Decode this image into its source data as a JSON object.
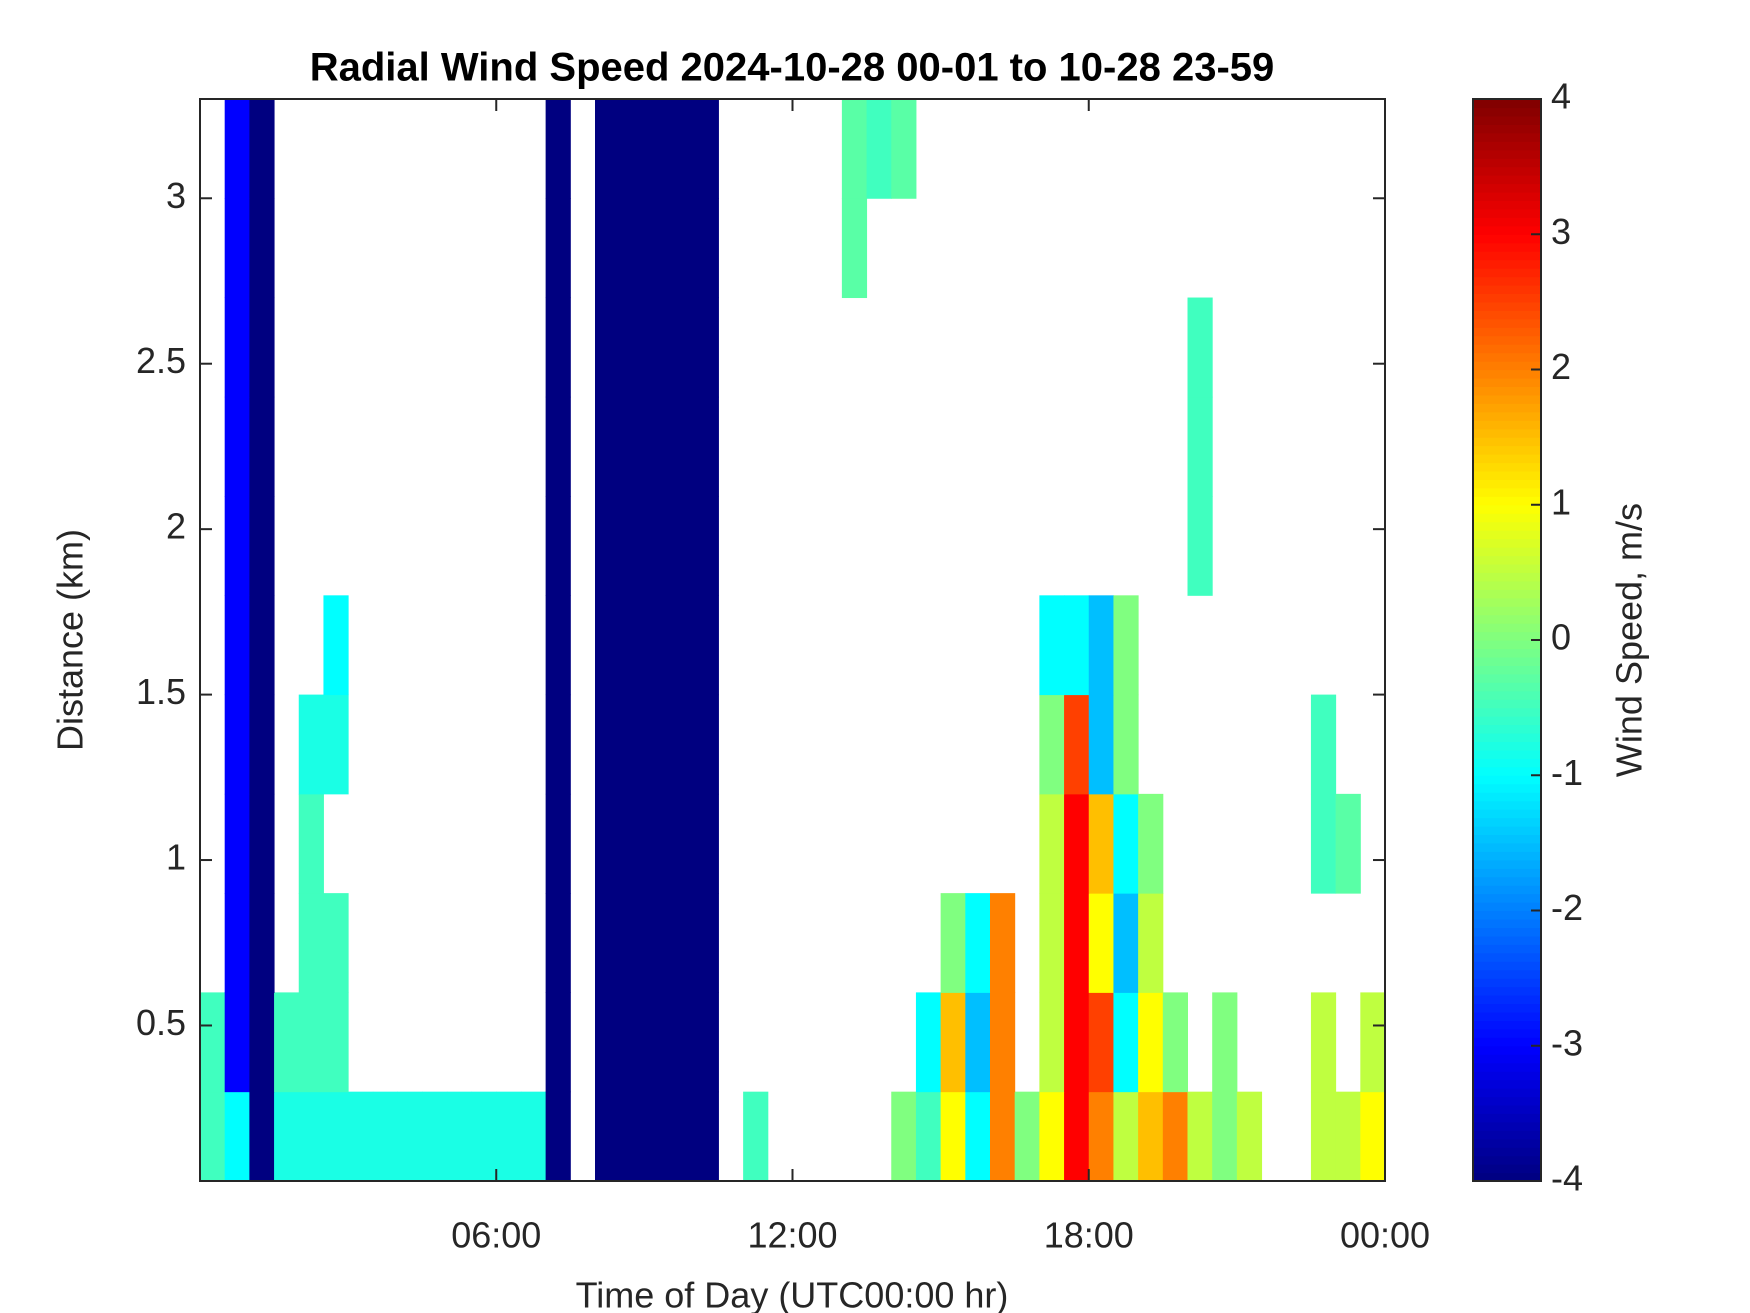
{
  "chart_data": {
    "type": "heatmap",
    "title": "Radial Wind Speed 2024-10-28 00-01 to 10-28 23-59",
    "xlabel": "Time of Day (UTC00:00 hr)",
    "ylabel": "Distance (km)",
    "colorbar_label": "Wind Speed, m/s",
    "colormap": "jet",
    "clim": [
      -4,
      4
    ],
    "cticks": [
      -4,
      -3,
      -2,
      -1,
      0,
      1,
      2,
      3,
      4
    ],
    "xlim": [
      0,
      24
    ],
    "xticks": [
      {
        "value": 6,
        "label": "06:00"
      },
      {
        "value": 12,
        "label": "12:00"
      },
      {
        "value": 18,
        "label": "18:00"
      },
      {
        "value": 24,
        "label": "00:00"
      }
    ],
    "ylim": [
      0.03,
      3.3
    ],
    "yticks": [
      0.5,
      1,
      1.5,
      2,
      2.5,
      3
    ],
    "x": [
      0.25,
      0.75,
      1.25,
      1.75,
      2.25,
      2.75,
      3.25,
      3.75,
      4.25,
      4.75,
      5.25,
      5.75,
      6.25,
      6.75,
      7.25,
      7.75,
      8.25,
      8.75,
      9.25,
      9.75,
      10.25,
      10.75,
      11.25,
      11.75,
      12.25,
      12.75,
      13.25,
      13.75,
      14.25,
      14.75,
      15.25,
      15.75,
      16.25,
      16.75,
      17.25,
      17.75,
      18.25,
      18.75,
      19.25,
      19.75,
      20.25,
      20.75,
      21.25,
      21.75,
      22.25,
      22.75,
      23.25,
      23.75
    ],
    "y": [
      0.15,
      0.45,
      0.75,
      1.05,
      1.35,
      1.65,
      1.95,
      2.25,
      2.55,
      2.85,
      3.15
    ],
    "z": [
      [
        -0.5,
        -1,
        -4,
        -0.8,
        -0.8,
        -0.8,
        -0.8,
        -0.8,
        -0.8,
        -0.8,
        -0.8,
        -0.8,
        -0.8,
        -0.8,
        -4,
        null,
        -4,
        -4,
        -4,
        -4,
        -4,
        null,
        -0.5,
        null,
        null,
        null,
        null,
        null,
        0,
        -0.5,
        1,
        -1,
        2,
        0,
        1,
        3,
        2,
        0.5,
        1.5,
        2,
        0.5,
        0,
        0.5,
        null,
        null,
        0.5,
        0.5,
        1
      ],
      [
        -0.5,
        -3,
        -4,
        -0.5,
        -0.5,
        -0.5,
        null,
        null,
        null,
        null,
        null,
        null,
        null,
        null,
        -4,
        null,
        -4,
        -4,
        -4,
        -4,
        -4,
        null,
        null,
        null,
        null,
        null,
        null,
        null,
        null,
        -1,
        1.5,
        -1.5,
        2,
        null,
        0.5,
        3,
        2.5,
        -1,
        1,
        0,
        null,
        0,
        null,
        null,
        null,
        0.5,
        null,
        0.5
      ],
      [
        null,
        -3,
        -4,
        null,
        -0.5,
        -0.5,
        null,
        null,
        null,
        null,
        null,
        null,
        null,
        null,
        -4,
        null,
        -4,
        -4,
        -4,
        -4,
        -4,
        null,
        null,
        null,
        null,
        null,
        null,
        null,
        null,
        null,
        0,
        -1,
        2,
        null,
        0.5,
        3,
        1,
        -1.5,
        0.5,
        null,
        null,
        null,
        null,
        null,
        null,
        null,
        null,
        null
      ],
      [
        null,
        -3,
        -4,
        null,
        -0.5,
        null,
        null,
        null,
        null,
        null,
        null,
        null,
        null,
        null,
        -4,
        null,
        -4,
        -4,
        -4,
        -4,
        -4,
        null,
        null,
        null,
        null,
        null,
        null,
        null,
        null,
        null,
        null,
        null,
        null,
        null,
        0.5,
        3,
        1.5,
        -1,
        0,
        null,
        null,
        null,
        null,
        null,
        null,
        -0.5,
        -0.3,
        null
      ],
      [
        null,
        -3,
        -4,
        null,
        -0.8,
        -0.8,
        null,
        null,
        null,
        null,
        null,
        null,
        null,
        null,
        -4,
        null,
        -4,
        -4,
        -4,
        -4,
        -4,
        null,
        null,
        null,
        null,
        null,
        null,
        null,
        null,
        null,
        null,
        null,
        null,
        null,
        0,
        2.5,
        -1.5,
        0,
        null,
        null,
        null,
        null,
        null,
        null,
        null,
        -0.5,
        null,
        null
      ],
      [
        null,
        -3,
        -4,
        null,
        null,
        -1,
        null,
        null,
        null,
        null,
        null,
        null,
        null,
        null,
        -4,
        null,
        -4,
        -4,
        -4,
        -4,
        -4,
        null,
        null,
        null,
        null,
        null,
        null,
        null,
        null,
        null,
        null,
        null,
        null,
        null,
        -1,
        -1,
        -1.5,
        0,
        null,
        null,
        null,
        null,
        null,
        null,
        null,
        null,
        null,
        null
      ],
      [
        null,
        -3,
        -4,
        null,
        null,
        null,
        null,
        null,
        null,
        null,
        null,
        null,
        null,
        null,
        -4,
        null,
        -4,
        -4,
        -4,
        -4,
        -4,
        null,
        null,
        null,
        null,
        null,
        null,
        null,
        null,
        null,
        null,
        null,
        null,
        null,
        null,
        null,
        null,
        null,
        null,
        null,
        -0.5,
        null,
        null,
        null,
        null,
        null,
        null,
        null
      ],
      [
        null,
        -3,
        -4,
        null,
        null,
        null,
        null,
        null,
        null,
        null,
        null,
        null,
        null,
        null,
        -4,
        null,
        -4,
        -4,
        -4,
        -4,
        -4,
        null,
        null,
        null,
        null,
        null,
        null,
        null,
        null,
        null,
        null,
        null,
        null,
        null,
        null,
        null,
        null,
        null,
        null,
        null,
        -0.5,
        null,
        null,
        null,
        null,
        null,
        null,
        null
      ],
      [
        null,
        -3,
        -4,
        null,
        null,
        null,
        null,
        null,
        null,
        null,
        null,
        null,
        null,
        null,
        -4,
        null,
        -4,
        -4,
        -4,
        -4,
        -4,
        null,
        null,
        null,
        null,
        null,
        null,
        null,
        null,
        null,
        null,
        null,
        null,
        null,
        null,
        null,
        null,
        null,
        null,
        null,
        -0.5,
        null,
        null,
        null,
        null,
        null,
        null,
        null
      ],
      [
        null,
        -3,
        -4,
        null,
        null,
        null,
        null,
        null,
        null,
        null,
        null,
        null,
        null,
        null,
        -4,
        null,
        -4,
        -4,
        -4,
        -4,
        -4,
        null,
        null,
        null,
        null,
        null,
        -0.3,
        null,
        null,
        null,
        null,
        null,
        null,
        null,
        null,
        null,
        null,
        null,
        null,
        null,
        null,
        null,
        null,
        null,
        null,
        null,
        null,
        null
      ],
      [
        null,
        -3,
        -4,
        null,
        null,
        null,
        null,
        null,
        null,
        null,
        null,
        null,
        null,
        null,
        -4,
        null,
        -4,
        -4,
        -4,
        -4,
        -4,
        null,
        null,
        null,
        null,
        null,
        -0.3,
        -0.5,
        -0.3,
        null,
        null,
        null,
        null,
        null,
        null,
        null,
        null,
        null,
        null,
        null,
        null,
        null,
        null,
        null,
        null,
        null,
        null,
        null
      ]
    ]
  }
}
